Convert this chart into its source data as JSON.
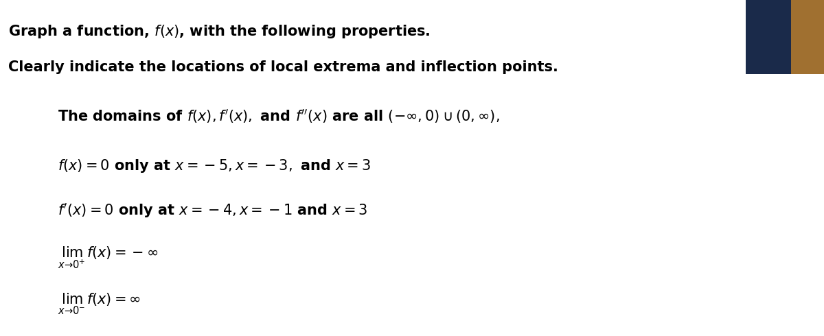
{
  "title_line1": "Graph a function, $f(x)$, with the following properties.",
  "title_line2": "Clearly indicate the locations of local extrema and inflection points.",
  "line1": "The domains of $f(x), f'(x),$ and $f''(x)$ are all $(-\\infty, 0) \\cup (0, \\infty),$",
  "line2": "$f(x) = 0$ only at $x = -5, x = -3,$ and $x = 3$",
  "line3": "$f'(x) = 0$ only at $x = -4, x = -1$ and $x = 3$",
  "line4_main": "$\\lim_{x \\to 0^+} f(x) = -\\infty$",
  "line5_main": "$\\lim_{x \\to 0^-} f(x) = \\infty$",
  "background_color": "#ffffff",
  "text_color": "#000000",
  "rect1_color": "#1a2a4a",
  "rect2_color": "#a07030",
  "title_fontsize": 15,
  "body_fontsize": 15
}
